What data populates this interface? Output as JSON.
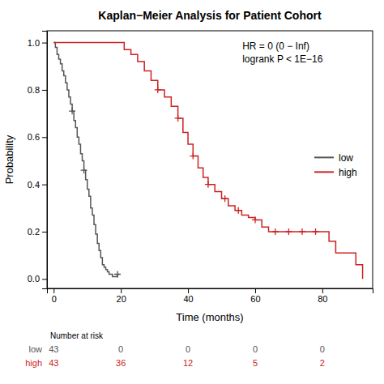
{
  "chart_data": {
    "type": "line",
    "line_style": "step",
    "title": "Kaplan−Meier Analysis for Patient Cohort",
    "x_label": "Time (months)",
    "y_label": "Probability",
    "xlim": [
      -2,
      95
    ],
    "ylim": [
      -0.04,
      1.05
    ],
    "xticks": [
      0,
      20,
      40,
      60,
      80
    ],
    "yticks": [
      {
        "value": 0,
        "label": "0.0"
      },
      0.2,
      0.4,
      0.6,
      0.8,
      {
        "value": 1,
        "label": "1.0"
      }
    ],
    "grid": false,
    "legend": "right",
    "annotation": [
      "HR = 0 (0 − Inf)",
      "logrank P < 1E−16"
    ],
    "series": [
      {
        "name": "low",
        "color": "#555555",
        "x": [
          0,
          0.5,
          1.0,
          1.5,
          2.0,
          2.5,
          3.0,
          3.5,
          4.0,
          4.5,
          5.0,
          5.5,
          6.0,
          6.5,
          7.0,
          7.5,
          8.0,
          8.5,
          9.0,
          9.5,
          10.0,
          10.5,
          11.0,
          11.5,
          12.0,
          12.5,
          13.0,
          13.5,
          14.0,
          14.5,
          15.0,
          15.5,
          16.0,
          16.5,
          17.0,
          17.5,
          18.0,
          18.5,
          19.0,
          19.5
        ],
        "values": [
          1.0,
          0.98,
          0.95,
          0.93,
          0.91,
          0.88,
          0.86,
          0.83,
          0.8,
          0.77,
          0.74,
          0.71,
          0.67,
          0.64,
          0.6,
          0.57,
          0.53,
          0.5,
          0.46,
          0.42,
          0.38,
          0.35,
          0.3,
          0.27,
          0.23,
          0.19,
          0.15,
          0.12,
          0.09,
          0.06,
          0.05,
          0.04,
          0.03,
          0.02,
          0.02,
          0.01,
          0.01,
          0.01,
          0.02,
          0.02
        ],
        "censors": {
          "x": [
            5.5,
            9.0,
            19.0
          ],
          "values": [
            0.71,
            0.46,
            0.02
          ]
        }
      },
      {
        "name": "high",
        "color": "#cc2222",
        "x": [
          0,
          19.0,
          21.0,
          23.0,
          25.0,
          27.0,
          29.0,
          31.0,
          33.0,
          35.0,
          37.0,
          38.5,
          40.0,
          41.5,
          43.0,
          44.5,
          46.0,
          48.0,
          50.0,
          52.0,
          54.0,
          56.0,
          58.0,
          60.0,
          62.0,
          64.0,
          66.0,
          68.0,
          70.0,
          72.0,
          74.0,
          76.0,
          78.0,
          80.0,
          82.0,
          84.0,
          87.0,
          90.0,
          92.0
        ],
        "values": [
          1.0,
          1.0,
          0.97,
          0.95,
          0.92,
          0.88,
          0.84,
          0.8,
          0.77,
          0.73,
          0.68,
          0.62,
          0.57,
          0.52,
          0.47,
          0.43,
          0.4,
          0.37,
          0.34,
          0.31,
          0.29,
          0.27,
          0.26,
          0.25,
          0.22,
          0.2,
          0.2,
          0.2,
          0.2,
          0.2,
          0.2,
          0.2,
          0.2,
          0.2,
          0.16,
          0.11,
          0.11,
          0.06,
          0.0
        ],
        "censors": {
          "x": [
            31.0,
            37.0,
            41.5,
            46.0,
            51.0,
            55.0,
            60.0,
            66.0,
            70.0,
            74.0,
            78.0
          ],
          "values": [
            0.8,
            0.68,
            0.52,
            0.4,
            0.34,
            0.29,
            0.25,
            0.2,
            0.2,
            0.2,
            0.2
          ]
        }
      }
    ],
    "risk_table": {
      "title": "Number at risk",
      "x": [
        0,
        20,
        40,
        60,
        80
      ],
      "rows": [
        {
          "name": "low",
          "values": [
            43,
            0,
            0,
            0,
            0
          ]
        },
        {
          "name": "high",
          "values": [
            43,
            36,
            12,
            5,
            2
          ]
        }
      ]
    }
  }
}
